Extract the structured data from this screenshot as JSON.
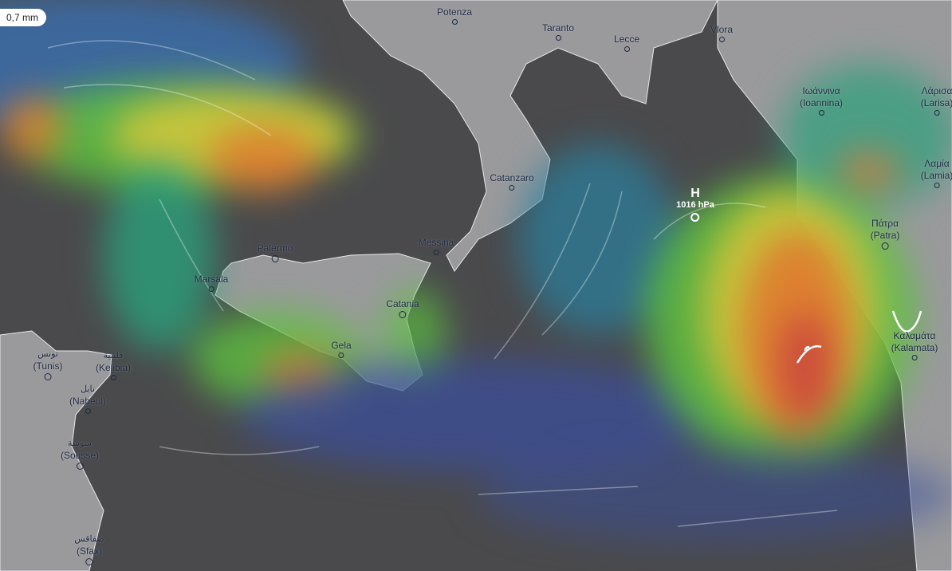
{
  "overlay": {
    "value_label": "0,7 mm",
    "layer": "rain accumulation"
  },
  "colors": {
    "sea": "#4a4a4c",
    "land": "#9a9a9c",
    "low": "#3a4fa0",
    "mid": "#2aa07a",
    "green": "#5cc040",
    "yellow": "#d8c83a",
    "orange": "#e07a30",
    "red": "#c84040"
  },
  "pressure_center": {
    "type": "H",
    "value": "1016 hPa"
  },
  "cities": [
    {
      "name": "Potenza"
    },
    {
      "name": "Taranto"
    },
    {
      "name": "Lecce"
    },
    {
      "name": "Vlora"
    },
    {
      "name": "Ιωάννινα",
      "alt": "(Ioannina)"
    },
    {
      "name": "Λάρισα",
      "alt": "(Larisa)"
    },
    {
      "name": "Λαμία",
      "alt": "(Lamia)"
    },
    {
      "name": "Πάτρα",
      "alt": "(Patra)"
    },
    {
      "name": "Καλαμάτα",
      "alt": "(Kalamata)"
    },
    {
      "name": "Catanzaro"
    },
    {
      "name": "Messina"
    },
    {
      "name": "Palermo"
    },
    {
      "name": "Marsala"
    },
    {
      "name": "Catania"
    },
    {
      "name": "Gela"
    },
    {
      "name": "تونس",
      "alt": "(Tunis)"
    },
    {
      "name": "قليبية",
      "alt": "(Kelibia)"
    },
    {
      "name": "نابل",
      "alt": "(Nabeul)"
    },
    {
      "name": "سوسة",
      "alt": "(Sousse)"
    },
    {
      "name": "صفاقس",
      "alt": "(Sfax)"
    }
  ]
}
